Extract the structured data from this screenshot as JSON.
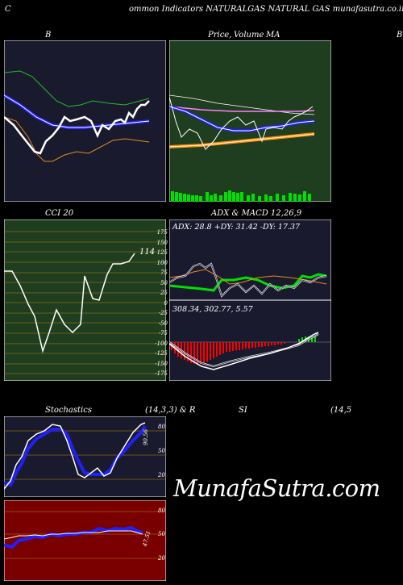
{
  "header": {
    "prefix": "C",
    "title": "ommon  Indicators NATURALGAS NATURAL  GAS munafasutra.co.in"
  },
  "panels": {
    "bollinger": {
      "title": "B"
    },
    "price": {
      "title_a": "Price,",
      "title_b": "Volume",
      "title_c": "MA",
      "edge": "B"
    },
    "cci": {
      "title": "CCI 20",
      "value_label": "114",
      "ticks": [
        "175",
        "150",
        "125",
        "100",
        "75",
        "50",
        "25",
        "0",
        "-25",
        "-50",
        "-75",
        "-100",
        "-125",
        "-150",
        "-175"
      ]
    },
    "adx": {
      "title": "ADX  & MACD 12,26,9",
      "readout": "ADX: 28.8   +DY: 31.42  -DY: 17.37"
    },
    "macd": {
      "readout": "308.34,  302.77,  5.57"
    },
    "stochastics": {
      "title_a": "Stochastics",
      "title_b": "(14,3,3) & R",
      "title_c": "SI",
      "title_d": "(14,5",
      "value_label": "90.56",
      "ticks": [
        "80",
        "50",
        "20"
      ]
    },
    "rsi": {
      "value_label": "47.51",
      "ticks": [
        "80",
        "50",
        "20"
      ]
    }
  },
  "watermark": "MunafaSutra.com",
  "colors": {
    "bollinger_bg": "#1a1a2e",
    "price_bg": "#1f3d1f",
    "cci_bg": "#1f3d1f",
    "adx_bg": "#1a1a2e",
    "rsi_bg": "#7a0000"
  }
}
